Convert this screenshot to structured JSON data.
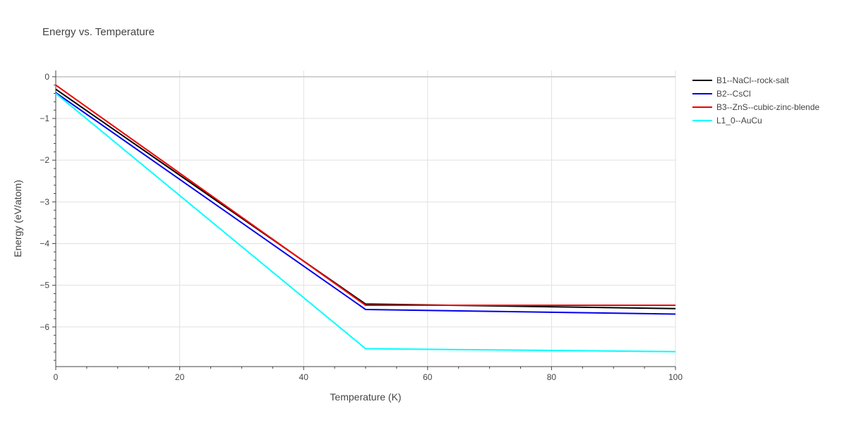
{
  "chart_data": {
    "type": "line",
    "title": "Energy vs. Temperature",
    "xlabel": "Temperature (K)",
    "ylabel": "Energy (eV/atom)",
    "xlim": [
      0,
      100
    ],
    "ylim": [
      -6.95,
      0.15
    ],
    "x_ticks": [
      0,
      20,
      40,
      60,
      80,
      100
    ],
    "y_ticks": [
      0,
      -1,
      -2,
      -3,
      -4,
      -5,
      -6
    ],
    "x_tick_labels": [
      "0",
      "20",
      "40",
      "60",
      "80",
      "100"
    ],
    "y_tick_labels": [
      "0",
      "−1",
      "−2",
      "−3",
      "−4",
      "−5",
      "−6"
    ],
    "grid": true,
    "legend_position": "top-right",
    "series": [
      {
        "name": "B1--NaCl--rock-salt",
        "color": "#000000",
        "x": [
          0,
          50,
          100
        ],
        "y": [
          -0.3,
          -5.45,
          -5.56
        ]
      },
      {
        "name": "B2--CsCl",
        "color": "#0000ee",
        "x": [
          0,
          50,
          100
        ],
        "y": [
          -0.38,
          -5.58,
          -5.69
        ]
      },
      {
        "name": "B3--ZnS--cubic-zinc-blende",
        "color": "#ee0000",
        "x": [
          0,
          50,
          100
        ],
        "y": [
          -0.2,
          -5.48,
          -5.48
        ]
      },
      {
        "name": "L1_0--AuCu",
        "color": "#00ffff",
        "x": [
          0,
          50,
          100
        ],
        "y": [
          -0.4,
          -6.52,
          -6.59
        ]
      }
    ]
  }
}
